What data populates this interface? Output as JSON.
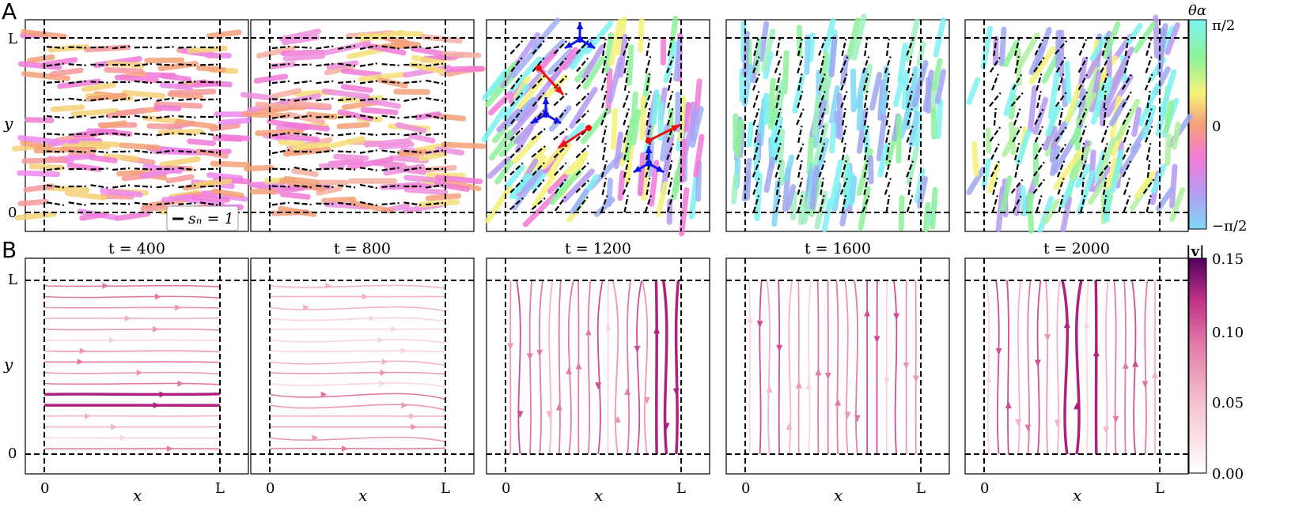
{
  "figure": {
    "panel_labels": [
      "A",
      "B"
    ],
    "times": [
      "t = 400",
      "t = 800",
      "t = 1200",
      "t = 1600",
      "t = 2000"
    ],
    "axis": {
      "x_label": "x",
      "y_label": "y",
      "tick_zero": "0",
      "tick_L": "L"
    },
    "legend_A": {
      "label": "s_n = 1",
      "display": "sₙ = 1"
    },
    "colorbar_A": {
      "title": "θα",
      "ticks": [
        "π/2",
        "0",
        "−π/2"
      ],
      "colors": [
        "#7ef3f3",
        "#8df29a",
        "#f5f27a",
        "#f5a07a",
        "#f27ad9",
        "#b79af0",
        "#7fd8f5"
      ]
    },
    "colorbar_B": {
      "title": "|v|",
      "ticks": [
        "0.15",
        "0.10",
        "0.05",
        "0.00"
      ],
      "colors": [
        "#ffffff",
        "#f6c8d2",
        "#e27aa8",
        "#c2338a",
        "#52005c"
      ]
    },
    "annotation_colors": {
      "plus_half_defect": "#ee1111",
      "minus_half_defect": "#1111ee"
    }
  }
}
